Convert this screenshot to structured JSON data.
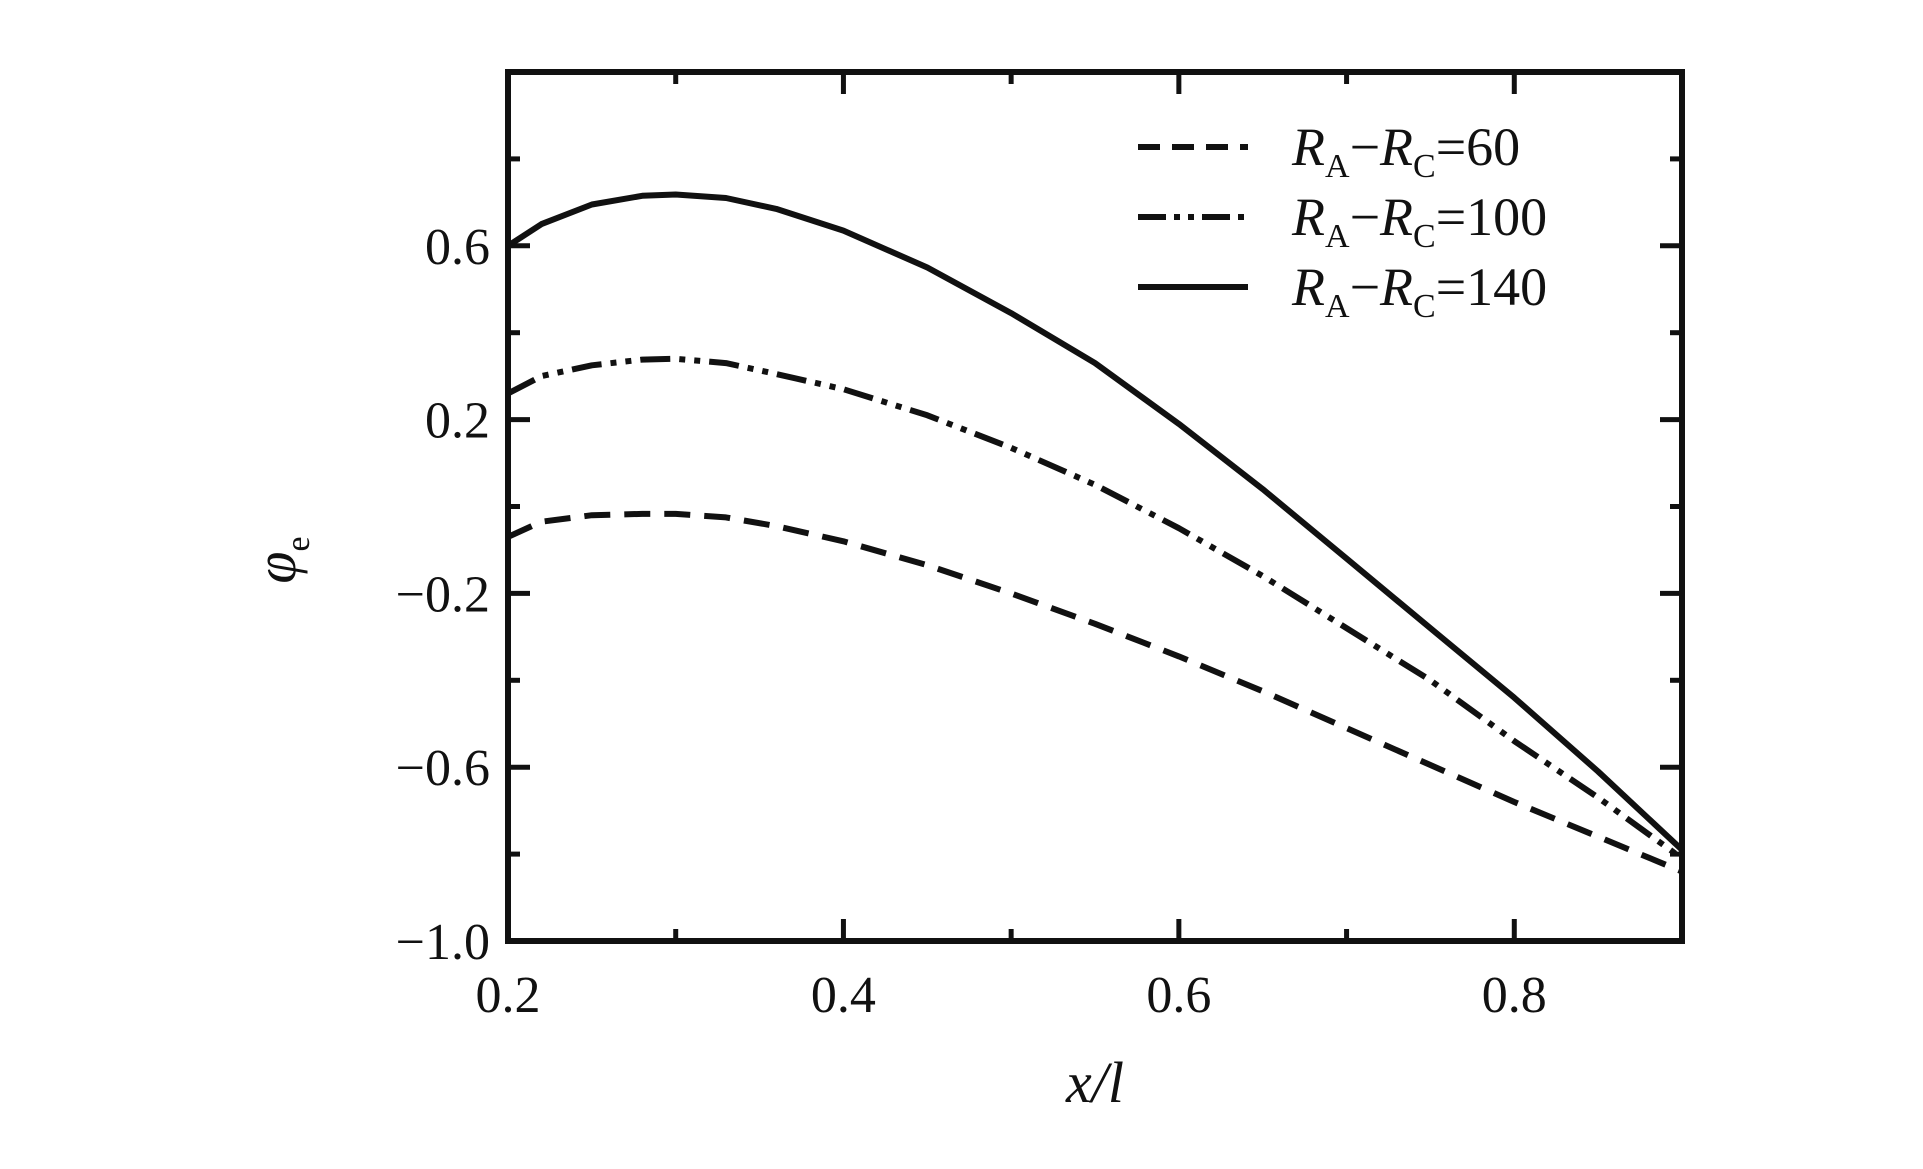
{
  "chart_data": {
    "type": "line",
    "title": "",
    "xlabel": "x/l",
    "ylabel": "φe",
    "xlim": [
      0.2,
      0.9
    ],
    "ylim": [
      -1.0,
      1.0
    ],
    "xticks": [
      0.2,
      0.4,
      0.6,
      0.8
    ],
    "xtick_labels": [
      "0.2",
      "0.4",
      "0.6",
      "0.8"
    ],
    "yticks": [
      -1.0,
      -0.6,
      -0.2,
      0.2,
      0.6
    ],
    "ytick_labels": [
      "−1.0",
      "−0.6",
      "−0.2",
      "0.2",
      "0.6"
    ],
    "legend_position": "top-right",
    "grid": false,
    "series": [
      {
        "name": "RA−RC=60",
        "label_parts": {
          "r1": "R",
          "s1": "A",
          "op": "−",
          "r2": "R",
          "s2": "C",
          "rest": "=60"
        },
        "style": "dashed",
        "x": [
          0.2,
          0.22,
          0.25,
          0.28,
          0.3,
          0.33,
          0.36,
          0.4,
          0.45,
          0.5,
          0.55,
          0.6,
          0.65,
          0.7,
          0.75,
          0.8,
          0.85,
          0.9
        ],
        "y": [
          -0.07,
          -0.035,
          -0.02,
          -0.017,
          -0.017,
          -0.025,
          -0.045,
          -0.08,
          -0.135,
          -0.2,
          -0.27,
          -0.345,
          -0.425,
          -0.51,
          -0.595,
          -0.68,
          -0.76,
          -0.84
        ]
      },
      {
        "name": "RA−RC=100",
        "label_parts": {
          "r1": "R",
          "s1": "A",
          "op": "−",
          "r2": "R",
          "s2": "C",
          "rest": "=100"
        },
        "style": "dash-dot-dot",
        "x": [
          0.2,
          0.22,
          0.25,
          0.28,
          0.3,
          0.33,
          0.36,
          0.4,
          0.45,
          0.5,
          0.55,
          0.6,
          0.65,
          0.7,
          0.75,
          0.8,
          0.85,
          0.9
        ],
        "y": [
          0.26,
          0.3,
          0.325,
          0.338,
          0.34,
          0.33,
          0.305,
          0.27,
          0.21,
          0.135,
          0.05,
          -0.05,
          -0.16,
          -0.28,
          -0.4,
          -0.54,
          -0.67,
          -0.81
        ]
      },
      {
        "name": "RA−RC=140",
        "label_parts": {
          "r1": "R",
          "s1": "A",
          "op": "−",
          "r2": "R",
          "s2": "C",
          "rest": "=140"
        },
        "style": "solid",
        "x": [
          0.2,
          0.22,
          0.25,
          0.28,
          0.3,
          0.33,
          0.36,
          0.4,
          0.45,
          0.5,
          0.55,
          0.6,
          0.65,
          0.7,
          0.75,
          0.8,
          0.85,
          0.9
        ],
        "y": [
          0.6,
          0.65,
          0.695,
          0.715,
          0.718,
          0.71,
          0.685,
          0.635,
          0.55,
          0.445,
          0.33,
          0.19,
          0.04,
          -0.12,
          -0.28,
          -0.44,
          -0.61,
          -0.79
        ]
      }
    ]
  }
}
